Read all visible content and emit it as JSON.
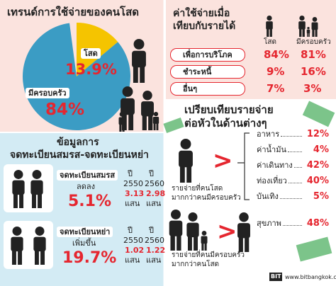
{
  "left_panel": {
    "title": "เทรนด์การใช้จ่ายของคนโสด",
    "pie": {
      "slices": [
        {
          "label": "โสด",
          "value": 13.9,
          "value_label": "13.9%",
          "color": "#f5c400"
        },
        {
          "label": "มีครอบครัว",
          "value": 84,
          "value_label": "84%",
          "color": "#3b9cc4"
        }
      ]
    }
  },
  "income_table": {
    "title_lines": [
      "ค่าใช้จ่ายเมื่อ",
      "เทียบกับรายได้"
    ],
    "columns": [
      "โสด",
      "มีครอบครัว"
    ],
    "rows": [
      [
        "เพื่อการบริโภค",
        "84%",
        "81%"
      ],
      [
        "ชำระหนี้",
        "9%",
        "16%"
      ],
      [
        "อื่นๆ",
        "7%",
        "3%"
      ]
    ]
  },
  "registration": {
    "title_lines": [
      "ข้อมูลการ",
      "จดทะเบียนสมรส-จดทะเบียนหย่า"
    ],
    "items": [
      {
        "label": "จดทะเบียนสมรส",
        "change": "ลดลง",
        "percent": "5.1%",
        "years": [
          {
            "year_label": "ปี",
            "year": "2550",
            "value": "3.13",
            "unit": "แสน"
          },
          {
            "year_label": "ปี",
            "year": "2560",
            "value": "2.98",
            "unit": "แสน"
          }
        ]
      },
      {
        "label": "จดทะเบียนหย่า",
        "change": "เพิ่มขึ้น",
        "percent": "19.7%",
        "years": [
          {
            "year_label": "ปี",
            "year": "2550",
            "value": "1.02",
            "unit": "แสน"
          },
          {
            "year_label": "ปี",
            "year": "2560",
            "value": "1.22",
            "unit": "แสน"
          }
        ]
      }
    ]
  },
  "comparison": {
    "title_lines": [
      "เปรียบเทียบรายจ่าย",
      "ต่อหัวในด้านต่างๆ"
    ],
    "sections": [
      {
        "caption_lines": [
          "รายจ่ายที่คนโสด",
          "มากกว่าคนมีครอบครัว"
        ],
        "items": [
          {
            "label": "อาหาร",
            "value": "12%"
          },
          {
            "label": "ค่าน้ำมัน",
            "value": "4%"
          },
          {
            "label": "ค่าเดินทาง",
            "value": "42%"
          },
          {
            "label": "ท่องเที่ยว",
            "value": "40%"
          },
          {
            "label": "บันเทิง",
            "value": "5%"
          }
        ]
      },
      {
        "caption_lines": [
          "รายจ่ายที่คนมีครอบครัว",
          "มากกว่าคนโสด"
        ],
        "items": [
          {
            "label": "สุขภาพ",
            "value": "48%"
          }
        ]
      }
    ]
  },
  "footer": {
    "logo": "BIT",
    "url": "www.bitbangkok.com"
  }
}
